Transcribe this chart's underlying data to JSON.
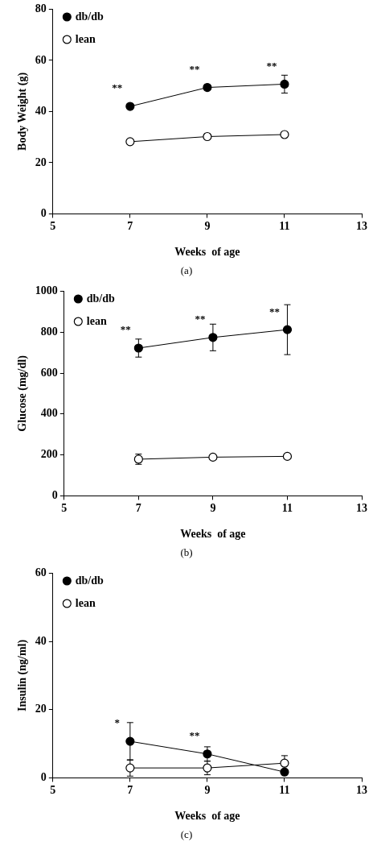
{
  "chart_data": [
    {
      "type": "line",
      "x": [
        7,
        9,
        11
      ],
      "xlabel": "Weeks  of age",
      "ylabel": "Body Weight (g)",
      "xlim": [
        5,
        13
      ],
      "xticks": [
        5,
        7,
        9,
        11,
        13
      ],
      "ylim": [
        0,
        80
      ],
      "yticks": [
        0,
        20,
        40,
        60,
        80
      ],
      "grid": false,
      "legend": "top left",
      "marker": "circle",
      "line_style": "solid",
      "series": [
        {
          "name": "db/db",
          "color": "#000000",
          "values": [
            42.0,
            49.4,
            50.7
          ],
          "errors": [
            null,
            null,
            3.5
          ]
        },
        {
          "name": "lean",
          "color": "#ffffff",
          "values": [
            28.2,
            30.2,
            31.0
          ]
        }
      ],
      "annotations": [
        {
          "text": "**",
          "x": 7,
          "y": 42.0
        },
        {
          "text": "**",
          "x": 9,
          "y": 49.4
        },
        {
          "text": "**",
          "x": 11,
          "y": 50.7
        },
        "(a)"
      ]
    },
    {
      "type": "line",
      "x": [
        7,
        9,
        11
      ],
      "xlabel": "Weeks  of age",
      "ylabel": "Glucose (mg/dl)",
      "xlim": [
        5,
        13
      ],
      "xticks": [
        5,
        7,
        9,
        11,
        13
      ],
      "ylim": [
        0,
        1000
      ],
      "yticks": [
        0,
        200,
        400,
        600,
        800,
        1000
      ],
      "grid": false,
      "legend": "top left",
      "marker": "circle",
      "line_style": "solid",
      "series": [
        {
          "name": "db/db",
          "color": "#000000",
          "values": [
            722,
            774,
            812
          ],
          "errors": [
            44,
            65,
            122
          ]
        },
        {
          "name": "lean",
          "color": "#ffffff",
          "values": [
            179,
            189,
            193
          ],
          "errors": [
            25,
            null,
            null
          ]
        }
      ],
      "annotations": [
        {
          "text": "**",
          "x": 7,
          "y": 722
        },
        {
          "text": "**",
          "x": 9,
          "y": 774
        },
        {
          "text": "**",
          "x": 11,
          "y": 812
        },
        "(b)"
      ]
    },
    {
      "type": "line",
      "x": [
        7,
        9,
        11
      ],
      "xlabel": "Weeks  of age",
      "ylabel": "Insulin (ng/ml)",
      "xlim": [
        5,
        13
      ],
      "xticks": [
        5,
        7,
        9,
        11,
        13
      ],
      "ylim": [
        0,
        60
      ],
      "yticks": [
        0,
        20,
        40,
        60
      ],
      "grid": false,
      "legend": "top left",
      "marker": "circle",
      "line_style": "solid",
      "series": [
        {
          "name": "db/db",
          "color": "#000000",
          "values": [
            10.7,
            7.0,
            1.7
          ],
          "errors": [
            5.5,
            2.1,
            null
          ]
        },
        {
          "name": "lean",
          "color": "#ffffff",
          "values": [
            2.9,
            2.9,
            4.3
          ],
          "errors": [
            2.4,
            2.0,
            2.2
          ]
        }
      ],
      "annotations": [
        {
          "text": "*",
          "x": 7,
          "y": 10.7
        },
        {
          "text": "**",
          "x": 9,
          "y": 7.0
        },
        "(c)"
      ]
    }
  ]
}
